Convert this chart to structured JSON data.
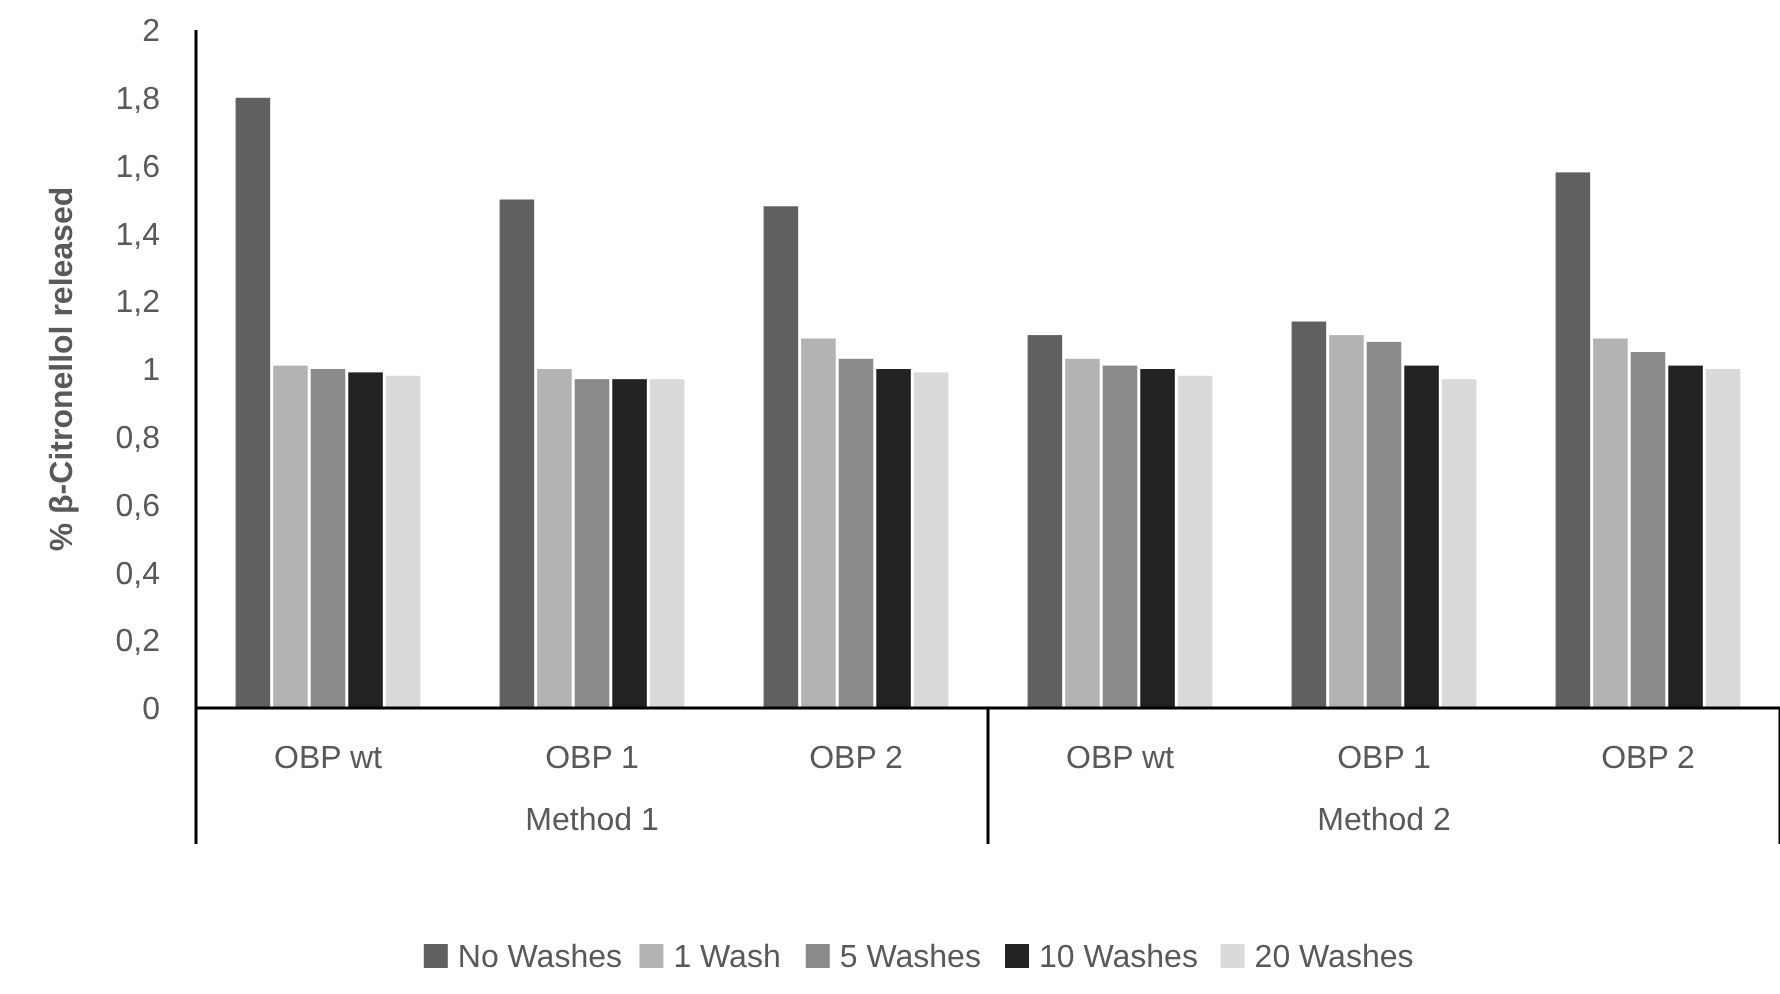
{
  "chart_data": {
    "type": "bar",
    "ylabel": "% β-Citronellol released",
    "categories": [
      "OBP wt",
      "OBP 1",
      "OBP 2",
      "OBP wt",
      "OBP 1",
      "OBP 2"
    ],
    "annotations": [
      "Method 1",
      "Method 2"
    ],
    "series": [
      {
        "name": "No Washes",
        "color": "#606060",
        "values": [
          1.8,
          1.5,
          1.48,
          1.1,
          1.14,
          1.58
        ]
      },
      {
        "name": "1 Wash",
        "color": "#b3b3b3",
        "values": [
          1.01,
          1.0,
          1.09,
          1.03,
          1.1,
          1.09
        ]
      },
      {
        "name": "5 Washes",
        "color": "#8a8a8a",
        "values": [
          1.0,
          0.97,
          1.03,
          1.01,
          1.08,
          1.05
        ]
      },
      {
        "name": "10 Washes",
        "color": "#222222",
        "values": [
          0.99,
          0.97,
          1.0,
          1.0,
          1.01,
          1.01
        ]
      },
      {
        "name": "20 Washes",
        "color": "#dadada",
        "values": [
          0.98,
          0.97,
          0.99,
          0.98,
          0.97,
          1.0
        ]
      }
    ],
    "ylim": [
      0,
      2
    ],
    "yticks": [
      0,
      {
        "value": 0.2,
        "label": "0,2"
      },
      {
        "value": 0.4,
        "label": "0,4"
      },
      {
        "value": 0.6,
        "label": "0,6"
      },
      {
        "value": 0.8,
        "label": "0,8"
      },
      1,
      {
        "value": 1.2,
        "label": "1,2"
      },
      {
        "value": 1.4,
        "label": "1,4"
      },
      {
        "value": 1.6,
        "label": "1,6"
      },
      {
        "value": 1.8,
        "label": "1,8"
      },
      2
    ],
    "grid": false,
    "legend": "bottom"
  }
}
